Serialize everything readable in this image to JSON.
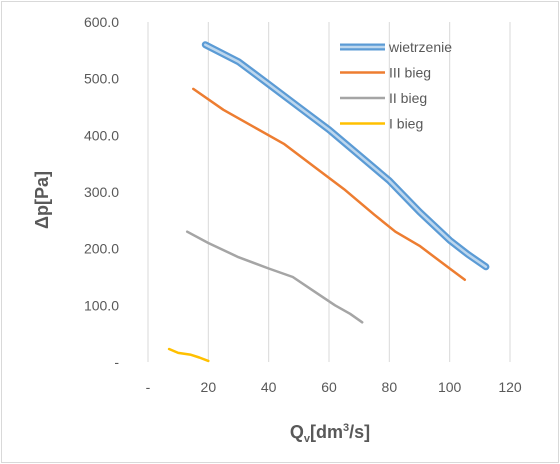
{
  "chart_data": {
    "type": "line",
    "xlabel_main": "Q",
    "xlabel_sub": "v",
    "xlabel_rest": "[dm",
    "xlabel_sup": "3",
    "xlabel_end": "/s]",
    "ylabel": "Δp[Pa]",
    "xlim": [
      0,
      120
    ],
    "ylim": [
      0,
      600
    ],
    "x_ticks": [
      0,
      20,
      40,
      60,
      80,
      100,
      120
    ],
    "x_tick_labels": [
      "-",
      "20",
      "40",
      "60",
      "80",
      "100",
      "120"
    ],
    "y_ticks": [
      0,
      100,
      200,
      300,
      400,
      500,
      600
    ],
    "y_tick_labels": [
      "-",
      "100.0",
      "200.0",
      "300.0",
      "400.0",
      "500.0",
      "600.0"
    ],
    "grid": "vertical",
    "legend_position": "top-right",
    "series": [
      {
        "name": "wietrzenie",
        "color": "#5b9bd5",
        "style": "thick",
        "points": [
          [
            19,
            560
          ],
          [
            30,
            530
          ],
          [
            40,
            490
          ],
          [
            50,
            450
          ],
          [
            60,
            410
          ],
          [
            70,
            365
          ],
          [
            80,
            320
          ],
          [
            90,
            265
          ],
          [
            100,
            215
          ],
          [
            106,
            190
          ],
          [
            112,
            168
          ]
        ]
      },
      {
        "name": "III bieg",
        "color": "#ed7d31",
        "style": "normal",
        "points": [
          [
            15,
            482
          ],
          [
            25,
            445
          ],
          [
            35,
            415
          ],
          [
            45,
            385
          ],
          [
            55,
            345
          ],
          [
            65,
            305
          ],
          [
            75,
            260
          ],
          [
            82,
            230
          ],
          [
            90,
            205
          ],
          [
            100,
            165
          ],
          [
            105,
            145
          ]
        ]
      },
      {
        "name": "II bieg",
        "color": "#a5a5a5",
        "style": "normal",
        "points": [
          [
            13,
            230
          ],
          [
            20,
            210
          ],
          [
            30,
            185
          ],
          [
            40,
            165
          ],
          [
            48,
            150
          ],
          [
            55,
            125
          ],
          [
            62,
            100
          ],
          [
            67,
            85
          ],
          [
            71,
            70
          ]
        ]
      },
      {
        "name": "I bieg",
        "color": "#ffc000",
        "style": "normal",
        "points": [
          [
            7,
            23
          ],
          [
            10,
            16
          ],
          [
            14,
            13
          ],
          [
            17,
            8
          ],
          [
            20,
            2
          ]
        ]
      }
    ]
  }
}
